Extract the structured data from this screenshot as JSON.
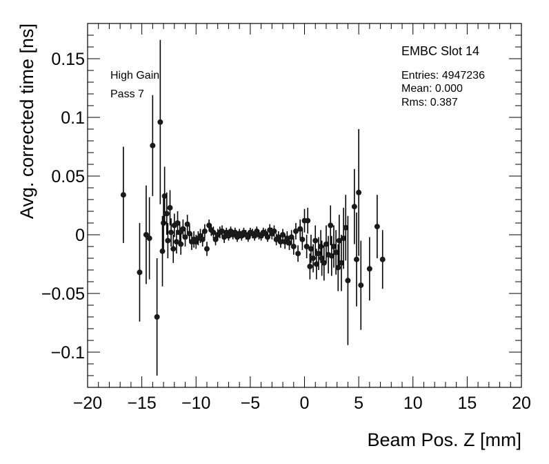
{
  "chart_data": {
    "type": "scatter",
    "title": "EMBC Slot 14",
    "xlabel": "Beam Pos. Z [mm]",
    "ylabel": "Avg. corrected time [ns]",
    "xlim": [
      -20,
      20
    ],
    "ylim": [
      -0.13,
      0.18
    ],
    "xticks": [
      -20,
      -15,
      -10,
      -5,
      0,
      5,
      10,
      15,
      20
    ],
    "yticks": [
      -0.1,
      -0.05,
      0,
      0.05,
      0.1,
      0.15
    ],
    "xtick_labels": [
      "−20",
      "−15",
      "−10",
      "−5",
      "0",
      "5",
      "10",
      "15",
      "20"
    ],
    "ytick_labels": [
      "−0.1",
      "−0.05",
      "0",
      "0.05",
      "0.1",
      "0.15"
    ],
    "grid": false,
    "annotations": [
      "High Gain",
      "Pass 7"
    ],
    "stats": {
      "entries": "Entries: 4947236",
      "mean": "Mean: 0.000",
      "rms": "Rms: 0.387"
    },
    "points": [
      {
        "x": -16.7,
        "y": 0.034,
        "err": 0.041
      },
      {
        "x": -15.2,
        "y": -0.032,
        "err": 0.042
      },
      {
        "x": -14.6,
        "y": 0.0,
        "err": 0.042
      },
      {
        "x": -14.3,
        "y": -0.003,
        "err": 0.035
      },
      {
        "x": -14.0,
        "y": 0.076,
        "err": 0.043
      },
      {
        "x": -13.6,
        "y": -0.07,
        "err": 0.05
      },
      {
        "x": -13.3,
        "y": 0.096,
        "err": 0.07
      },
      {
        "x": -13.1,
        "y": -0.014,
        "err": 0.03
      },
      {
        "x": -13.0,
        "y": 0.01,
        "err": 0.022
      },
      {
        "x": -12.9,
        "y": 0.033,
        "err": 0.025
      },
      {
        "x": -12.7,
        "y": 0.018,
        "err": 0.018
      },
      {
        "x": -12.6,
        "y": -0.005,
        "err": 0.015
      },
      {
        "x": -12.4,
        "y": 0.023,
        "err": 0.015
      },
      {
        "x": -12.3,
        "y": 0.002,
        "err": 0.012
      },
      {
        "x": -12.1,
        "y": -0.012,
        "err": 0.012
      },
      {
        "x": -12.0,
        "y": 0.008,
        "err": 0.01
      },
      {
        "x": -11.8,
        "y": -0.006,
        "err": 0.01
      },
      {
        "x": -11.7,
        "y": 0.01,
        "err": 0.01
      },
      {
        "x": -11.5,
        "y": 0.002,
        "err": 0.009
      },
      {
        "x": -11.4,
        "y": -0.008,
        "err": 0.009
      },
      {
        "x": -11.2,
        "y": 0.005,
        "err": 0.008
      },
      {
        "x": -11.0,
        "y": -0.002,
        "err": 0.008
      },
      {
        "x": -10.8,
        "y": 0.009,
        "err": 0.008
      },
      {
        "x": -10.6,
        "y": 0.001,
        "err": 0.007
      },
      {
        "x": -10.4,
        "y": -0.006,
        "err": 0.007
      },
      {
        "x": -10.2,
        "y": -0.004,
        "err": 0.007
      },
      {
        "x": -10.0,
        "y": -0.006,
        "err": 0.006
      },
      {
        "x": -9.8,
        "y": -0.003,
        "err": 0.006
      },
      {
        "x": -9.6,
        "y": -0.001,
        "err": 0.006
      },
      {
        "x": -9.4,
        "y": -0.004,
        "err": 0.006
      },
      {
        "x": -9.2,
        "y": 0.003,
        "err": 0.006
      },
      {
        "x": -9.0,
        "y": -0.012,
        "err": 0.006
      },
      {
        "x": -8.8,
        "y": 0.008,
        "err": 0.005
      },
      {
        "x": -8.6,
        "y": 0.004,
        "err": 0.005
      },
      {
        "x": -8.4,
        "y": 0.002,
        "err": 0.005
      },
      {
        "x": -8.2,
        "y": -0.004,
        "err": 0.005
      },
      {
        "x": -8.0,
        "y": 0.0,
        "err": 0.005
      },
      {
        "x": -7.8,
        "y": 0.002,
        "err": 0.005
      },
      {
        "x": -7.6,
        "y": 0.003,
        "err": 0.005
      },
      {
        "x": -7.4,
        "y": -0.002,
        "err": 0.005
      },
      {
        "x": -7.2,
        "y": 0.002,
        "err": 0.004
      },
      {
        "x": -7.0,
        "y": -0.001,
        "err": 0.004
      },
      {
        "x": -6.8,
        "y": 0.003,
        "err": 0.004
      },
      {
        "x": -6.6,
        "y": 0.0,
        "err": 0.004
      },
      {
        "x": -6.4,
        "y": 0.002,
        "err": 0.004
      },
      {
        "x": -6.2,
        "y": -0.002,
        "err": 0.004
      },
      {
        "x": -6.0,
        "y": 0.001,
        "err": 0.004
      },
      {
        "x": -5.8,
        "y": -0.001,
        "err": 0.004
      },
      {
        "x": -5.6,
        "y": 0.002,
        "err": 0.004
      },
      {
        "x": -5.4,
        "y": 0.0,
        "err": 0.004
      },
      {
        "x": -5.2,
        "y": -0.002,
        "err": 0.004
      },
      {
        "x": -5.0,
        "y": 0.002,
        "err": 0.004
      },
      {
        "x": -4.8,
        "y": 0.001,
        "err": 0.004
      },
      {
        "x": -4.6,
        "y": -0.001,
        "err": 0.004
      },
      {
        "x": -4.4,
        "y": 0.003,
        "err": 0.004
      },
      {
        "x": -4.2,
        "y": 0.0,
        "err": 0.004
      },
      {
        "x": -4.0,
        "y": -0.001,
        "err": 0.004
      },
      {
        "x": -3.8,
        "y": 0.002,
        "err": 0.004
      },
      {
        "x": -3.6,
        "y": 0.001,
        "err": 0.004
      },
      {
        "x": -3.4,
        "y": -0.002,
        "err": 0.004
      },
      {
        "x": -3.2,
        "y": 0.004,
        "err": 0.005
      },
      {
        "x": -3.0,
        "y": 0.001,
        "err": 0.005
      },
      {
        "x": -2.8,
        "y": 0.003,
        "err": 0.005
      },
      {
        "x": -2.6,
        "y": -0.004,
        "err": 0.005
      },
      {
        "x": -2.4,
        "y": -0.002,
        "err": 0.005
      },
      {
        "x": -2.2,
        "y": -0.006,
        "err": 0.005
      },
      {
        "x": -2.0,
        "y": 0.0,
        "err": 0.005
      },
      {
        "x": -1.8,
        "y": -0.006,
        "err": 0.006
      },
      {
        "x": -1.6,
        "y": -0.003,
        "err": 0.006
      },
      {
        "x": -1.4,
        "y": -0.007,
        "err": 0.006
      },
      {
        "x": -1.2,
        "y": -0.002,
        "err": 0.006
      },
      {
        "x": -1.0,
        "y": -0.01,
        "err": 0.007
      },
      {
        "x": -0.8,
        "y": 0.003,
        "err": 0.007
      },
      {
        "x": -0.6,
        "y": -0.016,
        "err": 0.007
      },
      {
        "x": -0.4,
        "y": 0.005,
        "err": 0.008
      },
      {
        "x": -0.2,
        "y": -0.004,
        "err": 0.009
      },
      {
        "x": 0.0,
        "y": 0.012,
        "err": 0.01
      },
      {
        "x": 0.2,
        "y": -0.01,
        "err": 0.01
      },
      {
        "x": 0.3,
        "y": 0.012,
        "err": 0.011
      },
      {
        "x": 0.5,
        "y": -0.027,
        "err": 0.011
      },
      {
        "x": 0.6,
        "y": -0.012,
        "err": 0.012
      },
      {
        "x": 0.8,
        "y": -0.02,
        "err": 0.012
      },
      {
        "x": 1.0,
        "y": -0.005,
        "err": 0.013
      },
      {
        "x": 1.1,
        "y": -0.025,
        "err": 0.013
      },
      {
        "x": 1.3,
        "y": -0.016,
        "err": 0.014
      },
      {
        "x": 1.5,
        "y": -0.01,
        "err": 0.014
      },
      {
        "x": 1.6,
        "y": -0.02,
        "err": 0.015
      },
      {
        "x": 1.8,
        "y": -0.024,
        "err": 0.015
      },
      {
        "x": 2.0,
        "y": -0.008,
        "err": 0.016
      },
      {
        "x": 2.2,
        "y": -0.017,
        "err": 0.016
      },
      {
        "x": 2.4,
        "y": 0.008,
        "err": 0.017
      },
      {
        "x": 2.5,
        "y": -0.018,
        "err": 0.017
      },
      {
        "x": 2.7,
        "y": -0.01,
        "err": 0.018
      },
      {
        "x": 2.9,
        "y": -0.015,
        "err": 0.019
      },
      {
        "x": 3.1,
        "y": -0.028,
        "err": 0.02
      },
      {
        "x": 3.2,
        "y": -0.005,
        "err": 0.022
      },
      {
        "x": 3.4,
        "y": -0.024,
        "err": 0.024
      },
      {
        "x": 3.6,
        "y": -0.003,
        "err": 0.026
      },
      {
        "x": 3.8,
        "y": 0.006,
        "err": 0.028
      },
      {
        "x": 4.0,
        "y": -0.039,
        "err": 0.055
      },
      {
        "x": 4.6,
        "y": 0.024,
        "err": 0.032
      },
      {
        "x": 4.8,
        "y": -0.021,
        "err": 0.04
      },
      {
        "x": 5.0,
        "y": 0.036,
        "err": 0.054
      },
      {
        "x": 5.2,
        "y": -0.043,
        "err": 0.038
      },
      {
        "x": 6.0,
        "y": -0.029,
        "err": 0.027
      },
      {
        "x": 6.7,
        "y": 0.007,
        "err": 0.027
      },
      {
        "x": 7.2,
        "y": -0.021,
        "err": 0.025
      }
    ]
  }
}
